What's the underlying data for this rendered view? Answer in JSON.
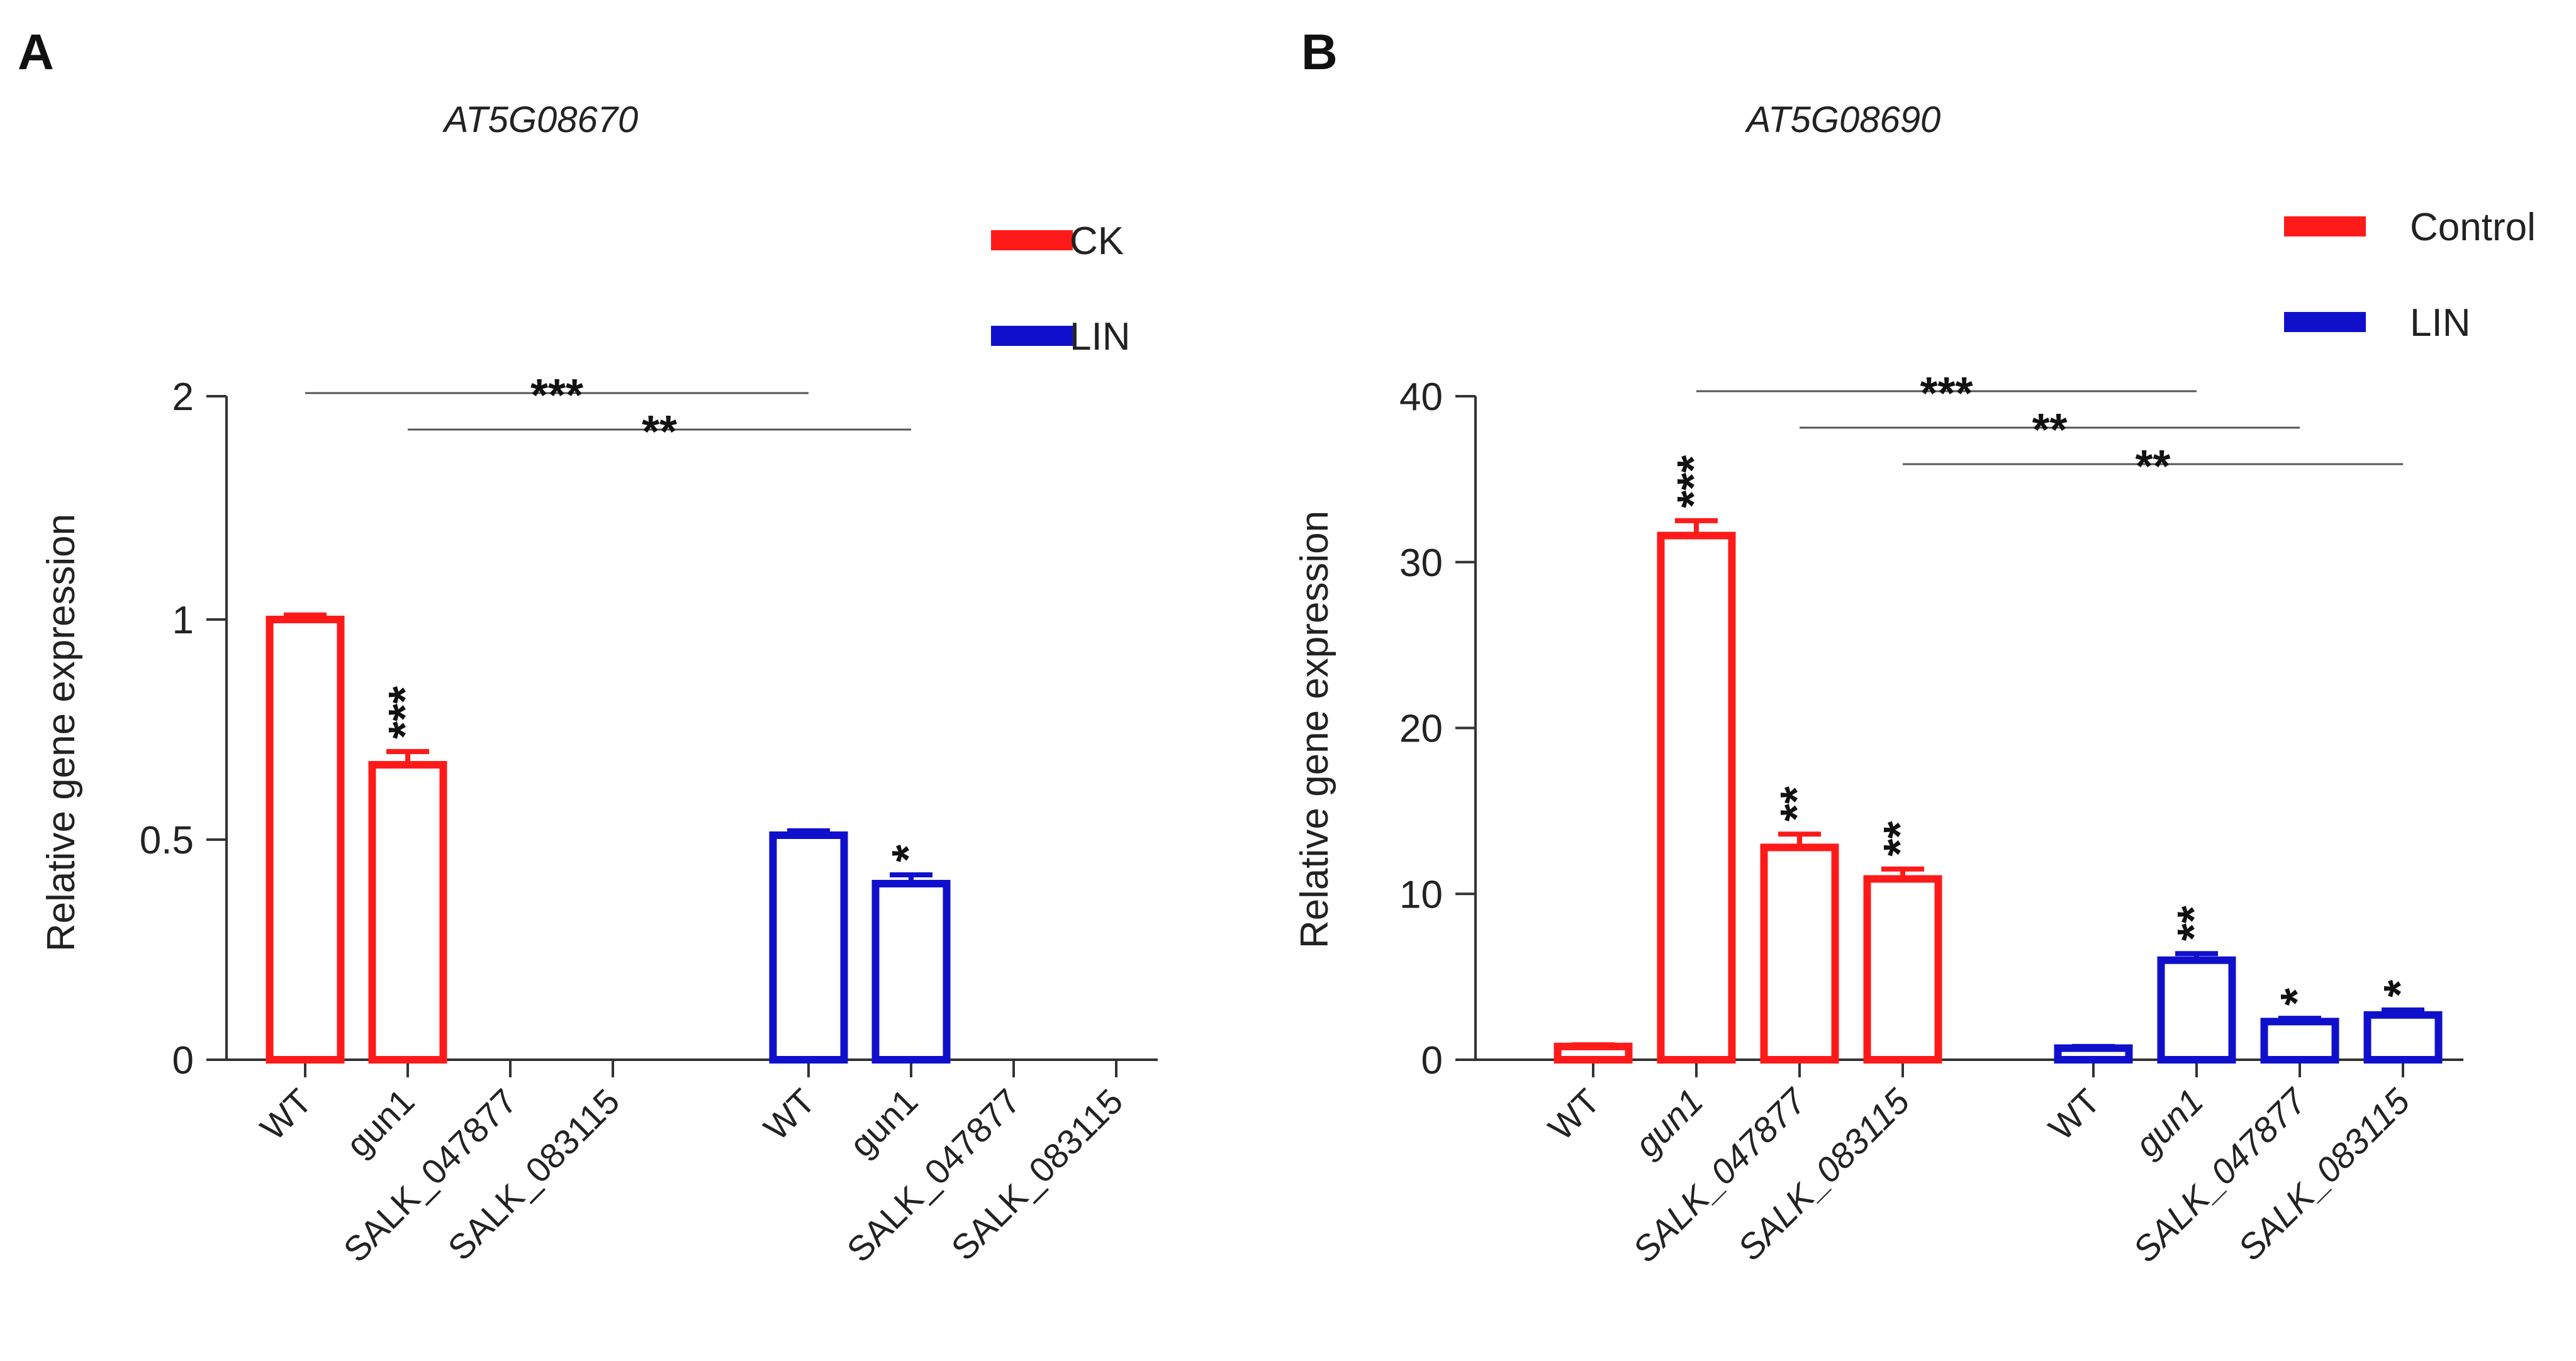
{
  "chart_data": [
    {
      "type": "bar",
      "panel": "A",
      "title": "AT5G08670",
      "xlabel": "",
      "ylabel": "Relative gene expression",
      "ylim": [
        0,
        2
      ],
      "yticks": [
        "0",
        "0.5",
        "1",
        "2"
      ],
      "ytick_values": [
        0,
        0.5,
        1,
        2
      ],
      "categories": [
        "WT",
        "gun1",
        "SALK_047877",
        "SALK_083115"
      ],
      "italic_categories": [
        false,
        false,
        false,
        false
      ],
      "series": [
        {
          "name": "CK",
          "color": "#ff1a1a",
          "values": [
            1.0,
            0.67,
            0,
            0
          ],
          "errors": [
            0.02,
            0.03,
            0,
            0
          ],
          "stars": [
            "",
            "***",
            "",
            ""
          ]
        },
        {
          "name": "LIN",
          "color": "#1010cc",
          "values": [
            0.51,
            0.4,
            0,
            0
          ],
          "errors": [
            0.01,
            0.02,
            0,
            0
          ],
          "stars": [
            "",
            "*",
            "",
            ""
          ]
        }
      ],
      "comparisons": [
        {
          "from": [
            0,
            0
          ],
          "to": [
            1,
            0
          ],
          "label": "***"
        },
        {
          "from": [
            0,
            1
          ],
          "to": [
            1,
            1
          ],
          "label": "**"
        }
      ]
    },
    {
      "type": "bar",
      "panel": "B",
      "title": "AT5G08690",
      "xlabel": "",
      "ylabel": "Relative gene expression",
      "ylim": [
        0,
        40
      ],
      "yticks": [
        "0",
        "10",
        "20",
        "30",
        "40"
      ],
      "ytick_values": [
        0,
        10,
        20,
        30,
        40
      ],
      "categories": [
        "WT",
        "gun1",
        "SALK_047877",
        "SALK_083115"
      ],
      "italic_categories": [
        false,
        true,
        true,
        true
      ],
      "series": [
        {
          "name": "Control",
          "color": "#ff1a1a",
          "values": [
            0.8,
            31.6,
            12.8,
            10.9
          ],
          "errors": [
            0.1,
            0.9,
            0.8,
            0.6
          ],
          "stars": [
            "",
            "***",
            "**",
            "**"
          ]
        },
        {
          "name": "LIN",
          "color": "#1010cc",
          "values": [
            0.7,
            6.0,
            2.3,
            2.7
          ],
          "errors": [
            0.1,
            0.4,
            0.2,
            0.3
          ],
          "stars": [
            "",
            "**",
            "*",
            "*"
          ]
        }
      ],
      "comparisons": [
        {
          "from": [
            0,
            1
          ],
          "to": [
            1,
            1
          ],
          "label": "***"
        },
        {
          "from": [
            0,
            2
          ],
          "to": [
            1,
            2
          ],
          "label": "**"
        },
        {
          "from": [
            0,
            3
          ],
          "to": [
            1,
            3
          ],
          "label": "**"
        }
      ]
    }
  ]
}
